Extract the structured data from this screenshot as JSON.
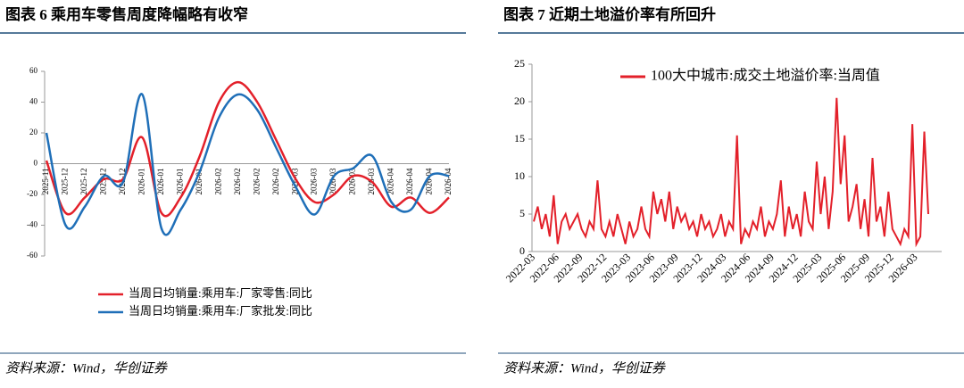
{
  "chart_data": [
    {
      "type": "line",
      "title": "图表 6   乘用车零售周度降幅略有收窄",
      "source": "资料来源：Wind，华创证券",
      "smooth": true,
      "categories": [
        "2025-11",
        "2025-12",
        "2025-12",
        "2025-12",
        "2025-12",
        "2026-01",
        "2026-01",
        "2026-01",
        "2026-01",
        "2026-02",
        "2026-02",
        "2026-02",
        "2026-02",
        "2026-03",
        "2026-03",
        "2026-03",
        "2026-03",
        "2026-03",
        "2026-04",
        "2026-04",
        "2026-04",
        "2026-04"
      ],
      "series": [
        {
          "name": "当周日均销量:乘用车:厂家零售:同比",
          "color": "#e3202a",
          "values": [
            2,
            -32,
            -22,
            -10,
            -10,
            17,
            -32,
            -22,
            5,
            40,
            53,
            40,
            15,
            -10,
            -25,
            -20,
            -8,
            -12,
            -28,
            -22,
            -32,
            -22
          ]
        },
        {
          "name": "当周日均销量:乘用车:厂家批发:同比",
          "color": "#1f6fb8",
          "values": [
            20,
            -40,
            -28,
            -8,
            -12,
            45,
            -42,
            -30,
            -5,
            30,
            45,
            35,
            10,
            -15,
            -33,
            -8,
            -3,
            5,
            -25,
            -30,
            -8,
            -8
          ]
        }
      ],
      "ylim": [
        -60,
        60
      ],
      "yticks": [
        -60,
        -40,
        -20,
        0,
        20,
        40,
        60
      ],
      "legend": "bottom"
    },
    {
      "type": "line",
      "title": "图表 7   近期土地溢价率有所回升",
      "source": "资料来源：Wind，华创证券",
      "smooth": false,
      "categories": [
        "2022-03",
        null,
        null,
        null,
        null,
        null,
        "2022-06",
        null,
        null,
        null,
        null,
        null,
        "2022-09",
        null,
        null,
        null,
        null,
        null,
        "2022-12",
        null,
        null,
        null,
        null,
        null,
        "2023-03",
        null,
        null,
        null,
        null,
        null,
        "2023-06",
        null,
        null,
        null,
        null,
        null,
        "2023-09",
        null,
        null,
        null,
        null,
        null,
        "2023-12",
        null,
        null,
        null,
        null,
        null,
        "2024-03",
        null,
        null,
        null,
        null,
        null,
        "2024-06",
        null,
        null,
        null,
        null,
        null,
        "2024-09",
        null,
        null,
        null,
        null,
        null,
        "2024-12",
        null,
        null,
        null,
        null,
        null,
        "2025-03",
        null,
        null,
        null,
        null,
        null,
        "2025-06",
        null,
        null,
        null,
        null,
        null,
        "2025-09",
        null,
        null,
        null,
        null,
        null,
        "2025-12",
        null,
        null,
        null,
        null,
        null,
        "2026-03",
        null,
        null,
        null
      ],
      "series": [
        {
          "name": "100大中城市:成交土地溢价率:当周值",
          "color": "#e3202a",
          "values": [
            4,
            6,
            3,
            5,
            2,
            7.5,
            1,
            4,
            5,
            3,
            4,
            5,
            3,
            2,
            4,
            3,
            9.5,
            3,
            2,
            4,
            2,
            5,
            3,
            1,
            4,
            2,
            3,
            6,
            3,
            2,
            8,
            5,
            7,
            4,
            8,
            3,
            6,
            4,
            5,
            3,
            4,
            2,
            5,
            3,
            4,
            2,
            3,
            5,
            2,
            4,
            3,
            15.5,
            1,
            3,
            2,
            4,
            3,
            6,
            2,
            4,
            3,
            5,
            9.5,
            2,
            6,
            3,
            5,
            2,
            8,
            4,
            3,
            12,
            5,
            10,
            3,
            8,
            20.5,
            9,
            15.5,
            4,
            6,
            9,
            3,
            7,
            2,
            12.5,
            4,
            6,
            2,
            8,
            3,
            2,
            1,
            3,
            2,
            17,
            1,
            2,
            16,
            5
          ]
        }
      ],
      "ylim": [
        0,
        25
      ],
      "yticks": [
        0,
        5,
        10,
        15,
        20,
        25
      ],
      "legend": "top"
    }
  ]
}
